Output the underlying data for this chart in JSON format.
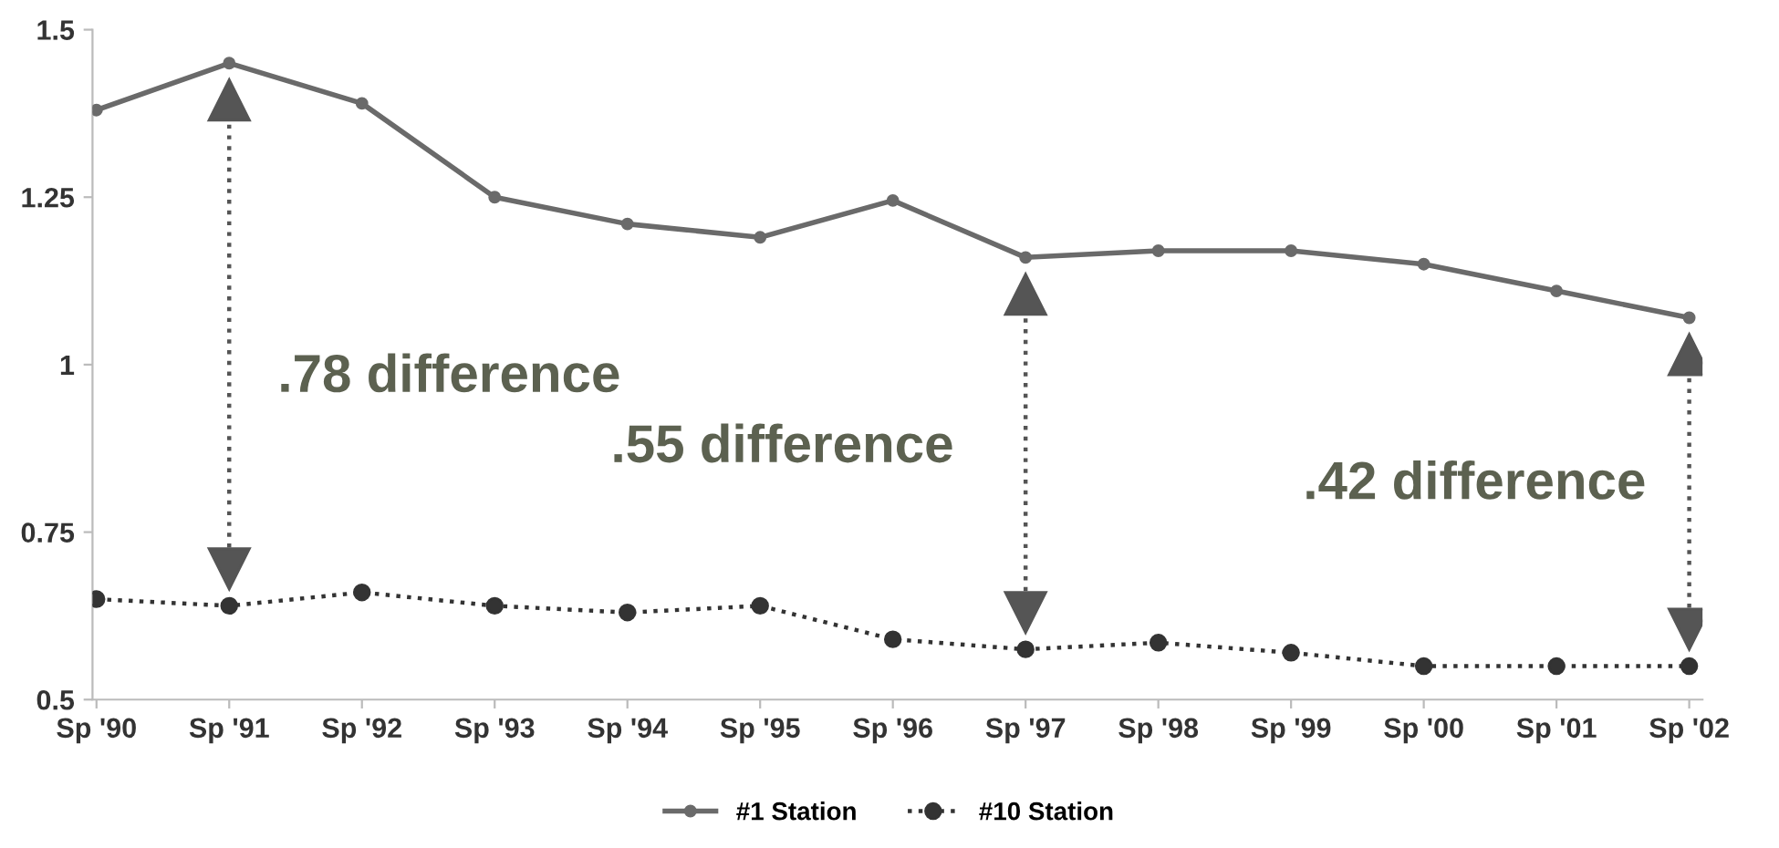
{
  "chart_data": {
    "type": "line",
    "categories": [
      "Sp '90",
      "Sp '91",
      "Sp '92",
      "Sp '93",
      "Sp '94",
      "Sp '95",
      "Sp '96",
      "Sp '97",
      "Sp '98",
      "Sp '99",
      "Sp '00",
      "Sp '01",
      "Sp '02"
    ],
    "series": [
      {
        "name": "#1 Station",
        "color": "#6a6a6a",
        "line_style": "solid",
        "values": [
          1.38,
          1.45,
          1.39,
          1.25,
          1.21,
          1.19,
          1.245,
          1.16,
          1.17,
          1.17,
          1.15,
          1.11,
          1.07
        ]
      },
      {
        "name": "#10 Station",
        "color": "#333333",
        "line_style": "dotted",
        "values": [
          0.65,
          0.64,
          0.66,
          0.64,
          0.63,
          0.64,
          0.59,
          0.575,
          0.585,
          0.57,
          0.55,
          0.55,
          0.55
        ]
      }
    ],
    "ylim": [
      0.5,
      1.5
    ],
    "yticks": [
      0.5,
      0.75,
      1,
      1.25,
      1.5
    ],
    "marker": "circle",
    "grid": false,
    "legend": "bottom",
    "annotations": [
      ".78 difference",
      ".55 difference",
      ".42 difference"
    ]
  }
}
